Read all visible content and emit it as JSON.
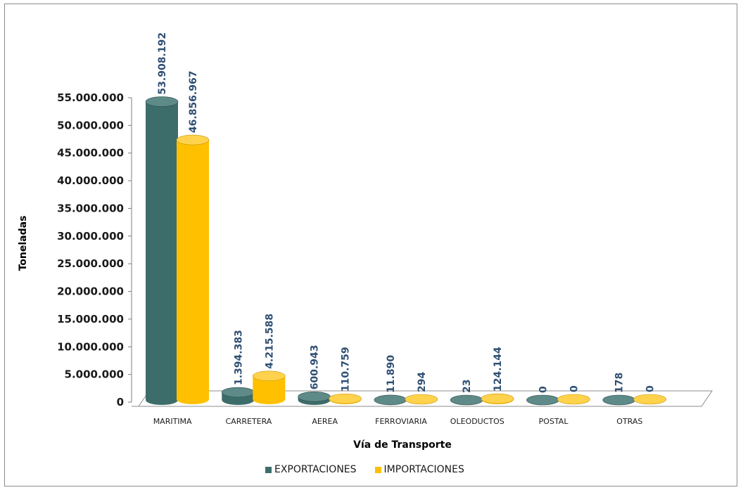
{
  "chart_data": {
    "type": "bar",
    "title": "",
    "xlabel": "Vía de Transporte",
    "ylabel": "Toneladas",
    "categories": [
      "MARITIMA",
      "CARRETERA",
      "AEREA",
      "FERROVIARIA",
      "OLEODUCTOS",
      "POSTAL",
      "OTRAS"
    ],
    "series": [
      {
        "name": "EXPORTACIONES",
        "color": "#3d6d6b",
        "values": [
          53908192,
          1394383,
          600943,
          11890,
          23,
          0,
          178
        ],
        "labels": [
          "53.908.192",
          "1.394.383",
          "600.943",
          "11.890",
          "23",
          "0",
          "178"
        ]
      },
      {
        "name": "IMPORTACIONES",
        "color": "#ffc000",
        "values": [
          46856967,
          4215588,
          110759,
          294,
          124144,
          0,
          0
        ],
        "labels": [
          "46.856.967",
          "4.215.588",
          "110.759",
          "294",
          "124.144",
          "0",
          "0"
        ]
      }
    ],
    "ylim": [
      0,
      55000000
    ],
    "yticks": [
      "0",
      "5.000.000",
      "10.000.000",
      "15.000.000",
      "20.000.000",
      "25.000.000",
      "30.000.000",
      "35.000.000",
      "40.000.000",
      "45.000.000",
      "50.000.000",
      "55.000.000"
    ],
    "grid": false,
    "legend_position": "bottom",
    "style": "3d-cylinder"
  }
}
